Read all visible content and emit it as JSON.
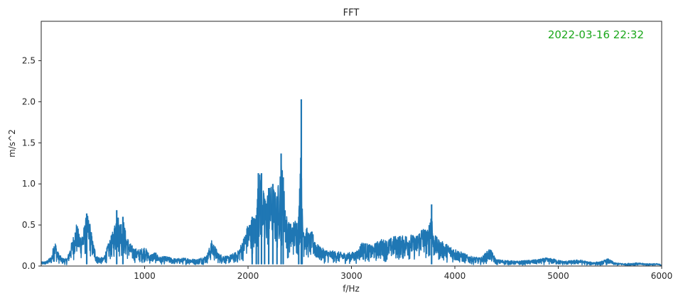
{
  "chart_data": {
    "type": "line",
    "title": "FFT",
    "xlabel": "f/Hz",
    "ylabel": "m/s^2",
    "annotation": "2022-03-16 22:32",
    "xlim": [
      0,
      6000
    ],
    "ylim": [
      0,
      2.98
    ],
    "xticks": [
      1000,
      2000,
      3000,
      4000,
      5000,
      6000
    ],
    "xtick_labels": [
      "1000",
      "2000",
      "3000",
      "4000",
      "5000",
      "6000"
    ],
    "yticks": [
      0.0,
      0.5,
      1.0,
      1.5,
      2.0,
      2.5
    ],
    "ytick_labels": [
      "0.0",
      "0.5",
      "1.0",
      "1.5",
      "2.0",
      "2.5"
    ],
    "grid": false,
    "series": [
      {
        "color": "#1f77b4",
        "x": [
          0,
          50,
          100,
          130,
          160,
          200,
          250,
          300,
          340,
          380,
          410,
          440,
          470,
          500,
          540,
          600,
          650,
          700,
          730,
          760,
          790,
          820,
          860,
          900,
          950,
          1000,
          1050,
          1100,
          1150,
          1200,
          1300,
          1400,
          1500,
          1600,
          1650,
          1690,
          1720,
          1800,
          1900,
          1950,
          2000,
          2040,
          2080,
          2100,
          2130,
          2160,
          2200,
          2240,
          2280,
          2320,
          2340,
          2380,
          2420,
          2460,
          2490,
          2515,
          2523,
          2530,
          2560,
          2590,
          2620,
          2680,
          2750,
          2850,
          2950,
          3050,
          3100,
          3200,
          3280,
          3350,
          3420,
          3500,
          3560,
          3620,
          3680,
          3740,
          3775,
          3790,
          3850,
          3950,
          4050,
          4150,
          4250,
          4340,
          4400,
          4500,
          4600,
          4700,
          4800,
          4880,
          4950,
          5050,
          5150,
          5200,
          5300,
          5400,
          5480,
          5550,
          5650,
          5750,
          5850,
          5950,
          6000
        ],
        "y": [
          0.05,
          0.06,
          0.12,
          0.33,
          0.18,
          0.1,
          0.09,
          0.32,
          0.52,
          0.38,
          0.46,
          0.64,
          0.55,
          0.3,
          0.12,
          0.1,
          0.28,
          0.45,
          0.68,
          0.55,
          0.6,
          0.4,
          0.28,
          0.22,
          0.2,
          0.24,
          0.14,
          0.17,
          0.11,
          0.12,
          0.09,
          0.1,
          0.08,
          0.13,
          0.32,
          0.22,
          0.15,
          0.12,
          0.18,
          0.32,
          0.52,
          0.6,
          0.62,
          1.13,
          1.13,
          0.82,
          0.95,
          1.0,
          0.85,
          1.37,
          1.08,
          0.55,
          0.52,
          0.58,
          0.6,
          2.03,
          0.7,
          0.55,
          0.5,
          0.4,
          0.42,
          0.25,
          0.2,
          0.18,
          0.16,
          0.18,
          0.3,
          0.25,
          0.33,
          0.32,
          0.37,
          0.37,
          0.4,
          0.36,
          0.48,
          0.44,
          0.75,
          0.4,
          0.32,
          0.25,
          0.18,
          0.12,
          0.1,
          0.22,
          0.08,
          0.07,
          0.06,
          0.07,
          0.08,
          0.1,
          0.09,
          0.06,
          0.07,
          0.08,
          0.05,
          0.05,
          0.09,
          0.04,
          0.03,
          0.04,
          0.03,
          0.03,
          0.02
        ]
      }
    ]
  },
  "colors": {
    "line": "#1f77b4",
    "annotation": "#1aa71a",
    "axes": "#262626"
  }
}
